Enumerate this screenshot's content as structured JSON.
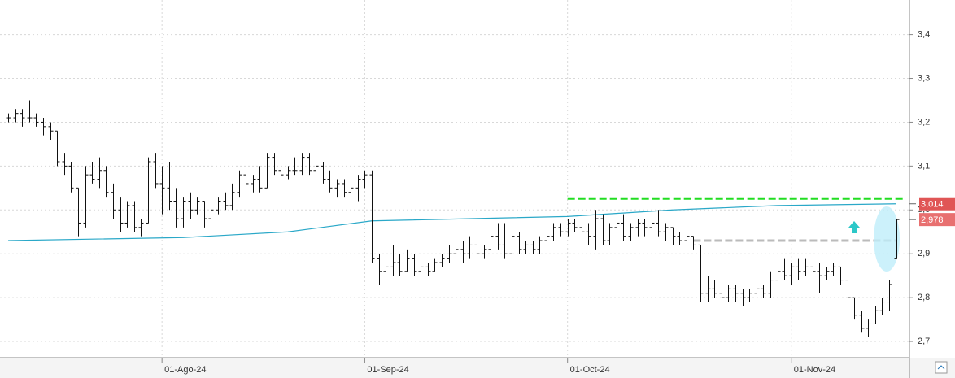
{
  "chart_data": {
    "type": "ohlc",
    "ohlc": [
      [
        3.21,
        3.22,
        3.2,
        3.21
      ],
      [
        3.21,
        3.23,
        3.2,
        3.22
      ],
      [
        3.22,
        3.23,
        3.19,
        3.21
      ],
      [
        3.21,
        3.25,
        3.2,
        3.21
      ],
      [
        3.21,
        3.22,
        3.19,
        3.2
      ],
      [
        3.2,
        3.21,
        3.17,
        3.19
      ],
      [
        3.19,
        3.2,
        3.16,
        3.18
      ],
      [
        3.18,
        3.18,
        3.1,
        3.11
      ],
      [
        3.11,
        3.13,
        3.08,
        3.1
      ],
      [
        3.1,
        3.11,
        3.04,
        3.05
      ],
      [
        3.05,
        3.05,
        2.94,
        2.97
      ],
      [
        2.97,
        3.1,
        2.96,
        3.08
      ],
      [
        3.08,
        3.11,
        3.06,
        3.07
      ],
      [
        3.07,
        3.12,
        3.05,
        3.09
      ],
      [
        3.09,
        3.1,
        3.03,
        3.04
      ],
      [
        3.04,
        3.06,
        2.98,
        3.0
      ],
      [
        3.0,
        3.03,
        2.95,
        2.97
      ],
      [
        2.97,
        3.02,
        2.96,
        3.01
      ],
      [
        3.01,
        3.02,
        2.95,
        2.96
      ],
      [
        2.96,
        2.98,
        2.94,
        2.97
      ],
      [
        2.97,
        3.12,
        2.97,
        3.11
      ],
      [
        3.11,
        3.13,
        3.05,
        3.06
      ],
      [
        3.06,
        3.1,
        2.99,
        3.05
      ],
      [
        3.05,
        3.11,
        3.0,
        3.02
      ],
      [
        3.02,
        3.05,
        2.96,
        2.98
      ],
      [
        2.98,
        3.03,
        2.96,
        3.02
      ],
      [
        3.02,
        3.04,
        2.98,
        3.0
      ],
      [
        3.0,
        3.03,
        2.99,
        3.02
      ],
      [
        3.02,
        3.02,
        2.96,
        2.98
      ],
      [
        2.98,
        3.01,
        2.97,
        3.0
      ],
      [
        3.0,
        3.03,
        2.99,
        3.02
      ],
      [
        3.02,
        3.04,
        3.0,
        3.01
      ],
      [
        3.01,
        3.06,
        3.0,
        3.04
      ],
      [
        3.04,
        3.09,
        3.03,
        3.08
      ],
      [
        3.08,
        3.09,
        3.05,
        3.06
      ],
      [
        3.06,
        3.08,
        3.04,
        3.07
      ],
      [
        3.07,
        3.1,
        3.04,
        3.05
      ],
      [
        3.05,
        3.13,
        3.05,
        3.12
      ],
      [
        3.12,
        3.13,
        3.08,
        3.09
      ],
      [
        3.09,
        3.11,
        3.07,
        3.08
      ],
      [
        3.08,
        3.1,
        3.07,
        3.09
      ],
      [
        3.09,
        3.12,
        3.08,
        3.09
      ],
      [
        3.09,
        3.13,
        3.08,
        3.12
      ],
      [
        3.12,
        3.13,
        3.08,
        3.09
      ],
      [
        3.09,
        3.11,
        3.07,
        3.1
      ],
      [
        3.1,
        3.11,
        3.06,
        3.07
      ],
      [
        3.07,
        3.09,
        3.04,
        3.05
      ],
      [
        3.05,
        3.07,
        3.03,
        3.06
      ],
      [
        3.06,
        3.07,
        3.03,
        3.04
      ],
      [
        3.04,
        3.06,
        3.03,
        3.05
      ],
      [
        3.05,
        3.08,
        3.02,
        3.07
      ],
      [
        3.07,
        3.09,
        3.05,
        3.08
      ],
      [
        3.08,
        3.09,
        2.88,
        2.89
      ],
      [
        2.89,
        2.9,
        2.83,
        2.86
      ],
      [
        2.86,
        2.89,
        2.84,
        2.87
      ],
      [
        2.87,
        2.92,
        2.85,
        2.88
      ],
      [
        2.88,
        2.9,
        2.85,
        2.86
      ],
      [
        2.86,
        2.91,
        2.86,
        2.89
      ],
      [
        2.89,
        2.9,
        2.85,
        2.86
      ],
      [
        2.86,
        2.88,
        2.85,
        2.87
      ],
      [
        2.87,
        2.88,
        2.85,
        2.86
      ],
      [
        2.86,
        2.89,
        2.86,
        2.88
      ],
      [
        2.88,
        2.9,
        2.87,
        2.89
      ],
      [
        2.89,
        2.92,
        2.88,
        2.9
      ],
      [
        2.9,
        2.94,
        2.89,
        2.91
      ],
      [
        2.91,
        2.93,
        2.88,
        2.9
      ],
      [
        2.9,
        2.94,
        2.89,
        2.92
      ],
      [
        2.92,
        2.93,
        2.89,
        2.9
      ],
      [
        2.9,
        2.92,
        2.89,
        2.91
      ],
      [
        2.91,
        2.95,
        2.9,
        2.94
      ],
      [
        2.94,
        2.97,
        2.91,
        2.92
      ],
      [
        2.92,
        2.97,
        2.89,
        2.9
      ],
      [
        2.9,
        2.96,
        2.89,
        2.94
      ],
      [
        2.94,
        2.95,
        2.9,
        2.91
      ],
      [
        2.91,
        2.93,
        2.9,
        2.92
      ],
      [
        2.92,
        2.93,
        2.9,
        2.91
      ],
      [
        2.91,
        2.94,
        2.9,
        2.93
      ],
      [
        2.93,
        2.95,
        2.92,
        2.94
      ],
      [
        2.94,
        2.97,
        2.93,
        2.96
      ],
      [
        2.96,
        2.97,
        2.94,
        2.95
      ],
      [
        2.95,
        2.98,
        2.94,
        2.97
      ],
      [
        2.97,
        2.98,
        2.95,
        2.96
      ],
      [
        2.96,
        2.98,
        2.93,
        2.95
      ],
      [
        2.95,
        2.97,
        2.92,
        2.94
      ],
      [
        2.94,
        3.0,
        2.91,
        2.98
      ],
      [
        2.98,
        2.99,
        2.92,
        2.93
      ],
      [
        2.93,
        2.97,
        2.92,
        2.96
      ],
      [
        2.96,
        2.99,
        2.95,
        2.97
      ],
      [
        2.97,
        2.99,
        2.93,
        2.94
      ],
      [
        2.94,
        2.97,
        2.93,
        2.96
      ],
      [
        2.96,
        2.98,
        2.94,
        2.97
      ],
      [
        2.97,
        2.98,
        2.94,
        2.96
      ],
      [
        2.96,
        3.03,
        2.95,
        2.97
      ],
      [
        2.97,
        3.0,
        2.94,
        2.95
      ],
      [
        2.95,
        2.97,
        2.93,
        2.96
      ],
      [
        2.96,
        2.96,
        2.92,
        2.94
      ],
      [
        2.94,
        2.95,
        2.92,
        2.93
      ],
      [
        2.93,
        2.95,
        2.92,
        2.94
      ],
      [
        2.94,
        2.94,
        2.91,
        2.92
      ],
      [
        2.92,
        2.92,
        2.79,
        2.81
      ],
      [
        2.81,
        2.85,
        2.79,
        2.82
      ],
      [
        2.82,
        2.84,
        2.8,
        2.81
      ],
      [
        2.81,
        2.84,
        2.78,
        2.8
      ],
      [
        2.8,
        2.83,
        2.79,
        2.82
      ],
      [
        2.82,
        2.83,
        2.79,
        2.81
      ],
      [
        2.81,
        2.82,
        2.78,
        2.8
      ],
      [
        2.8,
        2.82,
        2.79,
        2.81
      ],
      [
        2.81,
        2.83,
        2.8,
        2.82
      ],
      [
        2.82,
        2.83,
        2.8,
        2.81
      ],
      [
        2.81,
        2.86,
        2.8,
        2.84
      ],
      [
        2.84,
        2.93,
        2.83,
        2.86
      ],
      [
        2.86,
        2.89,
        2.84,
        2.85
      ],
      [
        2.85,
        2.88,
        2.83,
        2.87
      ],
      [
        2.87,
        2.89,
        2.84,
        2.86
      ],
      [
        2.86,
        2.89,
        2.85,
        2.87
      ],
      [
        2.87,
        2.88,
        2.84,
        2.86
      ],
      [
        2.86,
        2.88,
        2.81,
        2.85
      ],
      [
        2.85,
        2.87,
        2.84,
        2.86
      ],
      [
        2.86,
        2.88,
        2.85,
        2.87
      ],
      [
        2.87,
        2.87,
        2.83,
        2.84
      ],
      [
        2.84,
        2.85,
        2.79,
        2.8
      ],
      [
        2.8,
        2.8,
        2.75,
        2.76
      ],
      [
        2.76,
        2.77,
        2.72,
        2.73
      ],
      [
        2.73,
        2.75,
        2.71,
        2.74
      ],
      [
        2.74,
        2.78,
        2.74,
        2.77
      ],
      [
        2.77,
        2.8,
        2.76,
        2.79
      ],
      [
        2.79,
        2.84,
        2.77,
        2.83
      ],
      [
        2.89,
        2.98,
        2.89,
        2.978
      ]
    ],
    "moving_average": {
      "color": "#2aa8c8",
      "x": [
        0,
        25,
        40,
        52,
        80,
        95,
        110,
        127
      ],
      "values": [
        2.93,
        2.937,
        2.95,
        2.975,
        2.985,
        3.0,
        3.01,
        3.014
      ]
    },
    "levels": [
      {
        "color": "#22dd22",
        "value": 3.026,
        "x": [
          80,
          128
        ]
      },
      {
        "color": "#bbbbbb",
        "value": 2.93,
        "x": [
          98,
          127
        ]
      }
    ],
    "price_labels": [
      {
        "value": 3.014,
        "label": "3,014",
        "color": "#e05555"
      },
      {
        "value": 2.978,
        "label": "2,978",
        "color": "#e87070"
      }
    ],
    "xlim": [
      -1.17,
      128.9
    ],
    "xticks": [
      {
        "value": 22,
        "label": "01-Ago-24"
      },
      {
        "value": 51,
        "label": "01-Sep-24"
      },
      {
        "value": 80,
        "label": "01-Oct-24"
      },
      {
        "value": 112,
        "label": "01-Nov-24"
      }
    ],
    "ylim": [
      2.663,
      3.479
    ],
    "yticks": [
      {
        "value": 2.7,
        "label": "2,7"
      },
      {
        "value": 2.8,
        "label": "2,8"
      },
      {
        "value": 2.9,
        "label": "2,9"
      },
      {
        "value": 3.0,
        "label": "3,0"
      },
      {
        "value": 3.1,
        "label": "3,1"
      },
      {
        "value": 3.2,
        "label": "3,2"
      },
      {
        "value": 3.3,
        "label": "3,3"
      },
      {
        "value": 3.4,
        "label": "3,4"
      }
    ],
    "grid": true
  }
}
